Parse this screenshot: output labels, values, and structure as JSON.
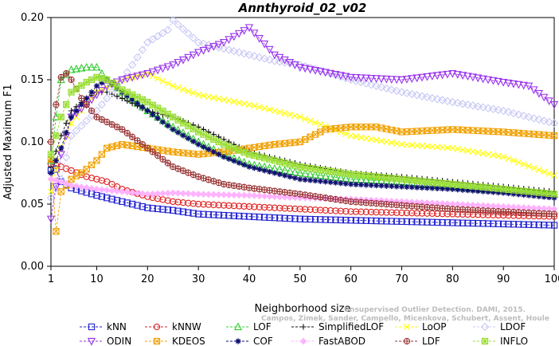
{
  "chart_data": {
    "type": "line",
    "title": "Annthyroid_02_v02",
    "xlabel": "Neighborhood size",
    "ylabel": "Adjusted Maximum F1",
    "xlim": [
      1,
      100
    ],
    "ylim": [
      0,
      0.2
    ],
    "xticks": [
      1,
      10,
      20,
      30,
      40,
      50,
      60,
      70,
      80,
      90,
      100
    ],
    "yticks": [
      0.0,
      0.05,
      0.1,
      0.15,
      0.2
    ],
    "yticklabels": [
      "0.00",
      "0.05",
      "0.10",
      "0.15",
      "0.20"
    ],
    "grid": false,
    "legend_position": "bottom",
    "watermark": [
      "Campos, Zimek, Sander, Campello, Micenkova, Schubert, Assent, Houle",
      "Unsupervised Outlier Detection. DAMI, 2015."
    ],
    "series": [
      {
        "name": "kNN",
        "color": "#1f1fd0",
        "marker": "square",
        "points": [
          [
            1,
            0.077
          ],
          [
            2,
            0.078
          ],
          [
            3,
            0.068
          ],
          [
            5,
            0.063
          ],
          [
            10,
            0.057
          ],
          [
            15,
            0.052
          ],
          [
            20,
            0.047
          ],
          [
            25,
            0.045
          ],
          [
            30,
            0.042
          ],
          [
            40,
            0.04
          ],
          [
            50,
            0.038
          ],
          [
            60,
            0.037
          ],
          [
            70,
            0.036
          ],
          [
            80,
            0.035
          ],
          [
            90,
            0.034
          ],
          [
            100,
            0.033
          ]
        ]
      },
      {
        "name": "kNNW",
        "color": "#e02020",
        "marker": "circle",
        "points": [
          [
            1,
            0.082
          ],
          [
            3,
            0.08
          ],
          [
            5,
            0.077
          ],
          [
            8,
            0.072
          ],
          [
            12,
            0.068
          ],
          [
            15,
            0.062
          ],
          [
            20,
            0.056
          ],
          [
            25,
            0.052
          ],
          [
            30,
            0.05
          ],
          [
            40,
            0.048
          ],
          [
            50,
            0.046
          ],
          [
            60,
            0.044
          ],
          [
            70,
            0.043
          ],
          [
            80,
            0.042
          ],
          [
            90,
            0.041
          ],
          [
            100,
            0.04
          ]
        ]
      },
      {
        "name": "LOF",
        "color": "#33cc33",
        "marker": "triangle-up",
        "points": [
          [
            1,
            0.085
          ],
          [
            2,
            0.12
          ],
          [
            3,
            0.15
          ],
          [
            5,
            0.158
          ],
          [
            8,
            0.16
          ],
          [
            10,
            0.16
          ],
          [
            12,
            0.15
          ],
          [
            15,
            0.14
          ],
          [
            20,
            0.125
          ],
          [
            25,
            0.112
          ],
          [
            30,
            0.1
          ],
          [
            35,
            0.09
          ],
          [
            40,
            0.082
          ],
          [
            50,
            0.075
          ],
          [
            60,
            0.07
          ],
          [
            70,
            0.068
          ],
          [
            80,
            0.064
          ],
          [
            90,
            0.061
          ],
          [
            100,
            0.058
          ]
        ]
      },
      {
        "name": "SimplifiedLOF",
        "color": "#111111",
        "marker": "plus",
        "points": [
          [
            1,
            0.08
          ],
          [
            3,
            0.105
          ],
          [
            5,
            0.125
          ],
          [
            8,
            0.135
          ],
          [
            10,
            0.14
          ],
          [
            12,
            0.14
          ],
          [
            15,
            0.135
          ],
          [
            20,
            0.125
          ],
          [
            25,
            0.12
          ],
          [
            30,
            0.112
          ],
          [
            35,
            0.102
          ],
          [
            40,
            0.092
          ],
          [
            50,
            0.082
          ],
          [
            60,
            0.075
          ],
          [
            70,
            0.072
          ],
          [
            80,
            0.068
          ],
          [
            90,
            0.064
          ],
          [
            100,
            0.06
          ]
        ]
      },
      {
        "name": "LoOP",
        "color": "#ffff00",
        "marker": "x",
        "points": [
          [
            1,
            0.06
          ],
          [
            3,
            0.095
          ],
          [
            5,
            0.115
          ],
          [
            8,
            0.13
          ],
          [
            10,
            0.14
          ],
          [
            15,
            0.15
          ],
          [
            20,
            0.155
          ],
          [
            25,
            0.145
          ],
          [
            30,
            0.138
          ],
          [
            40,
            0.13
          ],
          [
            50,
            0.12
          ],
          [
            60,
            0.105
          ],
          [
            70,
            0.098
          ],
          [
            80,
            0.095
          ],
          [
            90,
            0.088
          ],
          [
            100,
            0.073
          ]
        ]
      },
      {
        "name": "LDOF",
        "color": "#c8c8f5",
        "marker": "diamond",
        "points": [
          [
            1,
            0.055
          ],
          [
            3,
            0.07
          ],
          [
            5,
            0.105
          ],
          [
            10,
            0.125
          ],
          [
            15,
            0.15
          ],
          [
            20,
            0.18
          ],
          [
            24,
            0.19
          ],
          [
            25,
            0.198
          ],
          [
            30,
            0.18
          ],
          [
            35,
            0.175
          ],
          [
            40,
            0.17
          ],
          [
            45,
            0.165
          ],
          [
            50,
            0.162
          ],
          [
            60,
            0.15
          ],
          [
            70,
            0.14
          ],
          [
            80,
            0.132
          ],
          [
            90,
            0.125
          ],
          [
            100,
            0.115
          ]
        ]
      },
      {
        "name": "ODIN",
        "color": "#9933ee",
        "marker": "triangle-down",
        "points": [
          [
            1,
            0.038
          ],
          [
            3,
            0.09
          ],
          [
            5,
            0.12
          ],
          [
            8,
            0.13
          ],
          [
            10,
            0.138
          ],
          [
            12,
            0.145
          ],
          [
            15,
            0.15
          ],
          [
            20,
            0.155
          ],
          [
            25,
            0.162
          ],
          [
            30,
            0.172
          ],
          [
            35,
            0.18
          ],
          [
            40,
            0.192
          ],
          [
            45,
            0.17
          ],
          [
            50,
            0.16
          ],
          [
            60,
            0.152
          ],
          [
            70,
            0.15
          ],
          [
            80,
            0.155
          ],
          [
            90,
            0.148
          ],
          [
            95,
            0.145
          ],
          [
            100,
            0.13
          ]
        ]
      },
      {
        "name": "KDEOS",
        "color": "#f0a000",
        "marker": "square-x",
        "points": [
          [
            1,
            0.086
          ],
          [
            2,
            0.028
          ],
          [
            3,
            0.06
          ],
          [
            5,
            0.07
          ],
          [
            8,
            0.078
          ],
          [
            10,
            0.085
          ],
          [
            12,
            0.095
          ],
          [
            15,
            0.098
          ],
          [
            20,
            0.095
          ],
          [
            25,
            0.092
          ],
          [
            30,
            0.09
          ],
          [
            35,
            0.092
          ],
          [
            40,
            0.095
          ],
          [
            45,
            0.098
          ],
          [
            50,
            0.1
          ],
          [
            55,
            0.11
          ],
          [
            60,
            0.112
          ],
          [
            65,
            0.112
          ],
          [
            70,
            0.108
          ],
          [
            80,
            0.11
          ],
          [
            90,
            0.108
          ],
          [
            100,
            0.105
          ]
        ]
      },
      {
        "name": "COF",
        "color": "#101070",
        "marker": "asterisk",
        "points": [
          [
            1,
            0.075
          ],
          [
            3,
            0.095
          ],
          [
            5,
            0.12
          ],
          [
            8,
            0.135
          ],
          [
            10,
            0.145
          ],
          [
            12,
            0.15
          ],
          [
            15,
            0.14
          ],
          [
            20,
            0.125
          ],
          [
            25,
            0.11
          ],
          [
            30,
            0.098
          ],
          [
            35,
            0.088
          ],
          [
            40,
            0.08
          ],
          [
            50,
            0.07
          ],
          [
            60,
            0.066
          ],
          [
            70,
            0.064
          ],
          [
            80,
            0.062
          ],
          [
            90,
            0.059
          ],
          [
            100,
            0.055
          ]
        ]
      },
      {
        "name": "FastABOD",
        "color": "#ffb3ff",
        "marker": "diamond-filled",
        "points": [
          [
            1,
            0.07
          ],
          [
            3,
            0.068
          ],
          [
            5,
            0.065
          ],
          [
            10,
            0.062
          ],
          [
            15,
            0.06
          ],
          [
            20,
            0.058
          ],
          [
            25,
            0.059
          ],
          [
            30,
            0.058
          ],
          [
            40,
            0.057
          ],
          [
            50,
            0.055
          ],
          [
            60,
            0.054
          ],
          [
            70,
            0.052
          ],
          [
            80,
            0.05
          ],
          [
            90,
            0.048
          ],
          [
            100,
            0.046
          ]
        ]
      },
      {
        "name": "LDF",
        "color": "#993333",
        "marker": "circle-plus",
        "points": [
          [
            1,
            0.1
          ],
          [
            2,
            0.13
          ],
          [
            3,
            0.152
          ],
          [
            4,
            0.155
          ],
          [
            5,
            0.15
          ],
          [
            7,
            0.135
          ],
          [
            10,
            0.12
          ],
          [
            15,
            0.11
          ],
          [
            20,
            0.095
          ],
          [
            25,
            0.08
          ],
          [
            30,
            0.072
          ],
          [
            35,
            0.066
          ],
          [
            40,
            0.063
          ],
          [
            50,
            0.058
          ],
          [
            60,
            0.052
          ],
          [
            70,
            0.049
          ],
          [
            80,
            0.046
          ],
          [
            90,
            0.044
          ],
          [
            100,
            0.042
          ]
        ]
      },
      {
        "name": "INFLO",
        "color": "#99dd33",
        "marker": "square-star",
        "points": [
          [
            1,
            0.09
          ],
          [
            3,
            0.12
          ],
          [
            5,
            0.14
          ],
          [
            8,
            0.148
          ],
          [
            10,
            0.152
          ],
          [
            12,
            0.15
          ],
          [
            15,
            0.142
          ],
          [
            20,
            0.132
          ],
          [
            25,
            0.12
          ],
          [
            30,
            0.108
          ],
          [
            35,
            0.098
          ],
          [
            40,
            0.09
          ],
          [
            50,
            0.08
          ],
          [
            60,
            0.074
          ],
          [
            70,
            0.07
          ],
          [
            80,
            0.066
          ],
          [
            90,
            0.062
          ],
          [
            100,
            0.058
          ]
        ]
      }
    ]
  }
}
